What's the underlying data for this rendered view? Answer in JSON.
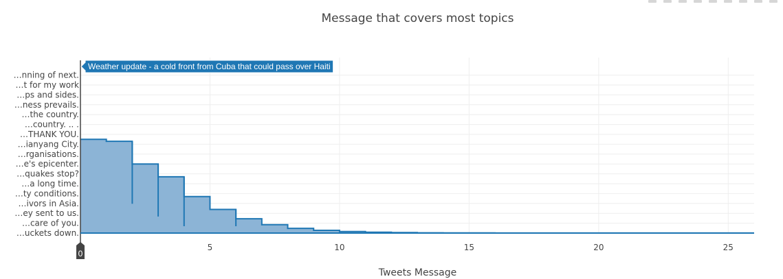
{
  "modebar": {
    "buttons": [
      "camera-icon",
      "zoom-icon",
      "pan-icon",
      "zoom-in-icon",
      "zoom-out-icon",
      "autoscale-icon",
      "reset-icon",
      "hover-icon",
      "compare-icon"
    ]
  },
  "colors": {
    "fill": "#8cb4d6",
    "line": "#1f77b4",
    "tooltip_bg": "#1f77b4",
    "grid": "#eeeeee",
    "cursor_badge": "#444444"
  },
  "tooltip": {
    "text": "Weather update - a cold front from Cuba that could pass over Haiti"
  },
  "cursor_badge": {
    "label": "0"
  },
  "chart_data": {
    "type": "area",
    "title": "Message that covers most topics",
    "xlabel": "Tweets Message",
    "ylabel": "",
    "xlim": [
      0,
      26
    ],
    "x_ticks": [
      5,
      10,
      15,
      20,
      25
    ],
    "grid": true,
    "line_shape": "step",
    "y_categories": [
      "…uckets down.",
      "…care of you.",
      "…ey sent to us.",
      "…ivors in Asia.",
      "…ty conditions.",
      "…a long time.",
      "…quakes stop?",
      "…e's epicenter.",
      "…rganisations.",
      "…ianyang City.",
      "…THANK YOU.",
      "…country. .. .",
      "…the country.",
      "…ness prevails.",
      "…ps and sides.",
      "…t for my work",
      "…nning of next."
    ],
    "x": [
      0,
      1,
      2,
      3,
      4,
      5,
      6,
      7,
      8,
      9,
      10,
      11,
      12,
      13,
      14,
      15,
      16,
      17,
      18,
      19,
      20,
      21,
      22,
      23,
      24,
      25,
      26
    ],
    "y": [
      9.5,
      9.3,
      7.0,
      5.7,
      3.7,
      2.4,
      1.45,
      0.85,
      0.48,
      0.28,
      0.16,
      0.09,
      0.05,
      0.03,
      0.02,
      0.015,
      0.01,
      0.01,
      0.01,
      0.01,
      0.01,
      0.01,
      0.01,
      0.01,
      0.01,
      0.01,
      0.01
    ]
  }
}
